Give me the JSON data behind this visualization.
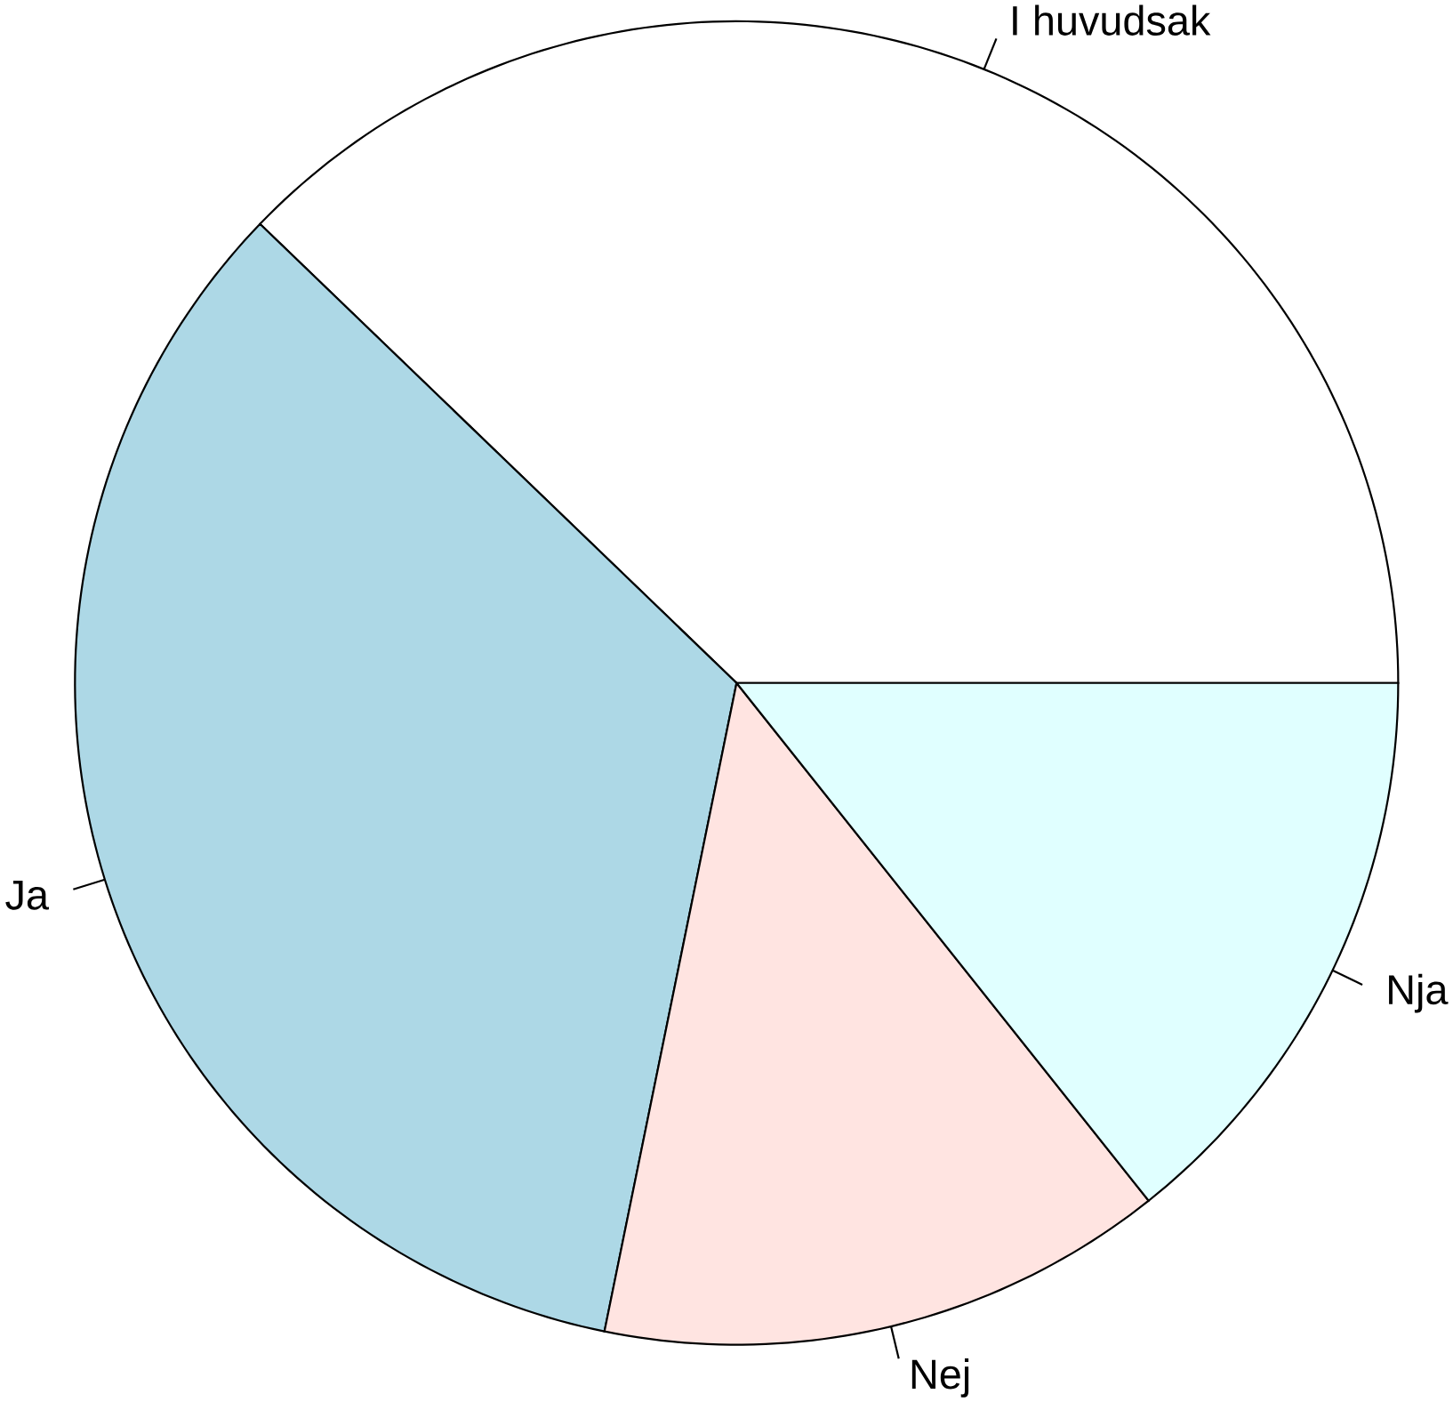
{
  "chart_data": {
    "type": "pie",
    "categories": [
      "I huvudsak",
      "Ja",
      "Nej",
      "Nja"
    ],
    "values": [
      37.8,
      34.0,
      13.9,
      14.3
    ],
    "colors": [
      "#ffffff",
      "#add8e6",
      "#ffe4e1",
      "#e0ffff"
    ]
  }
}
